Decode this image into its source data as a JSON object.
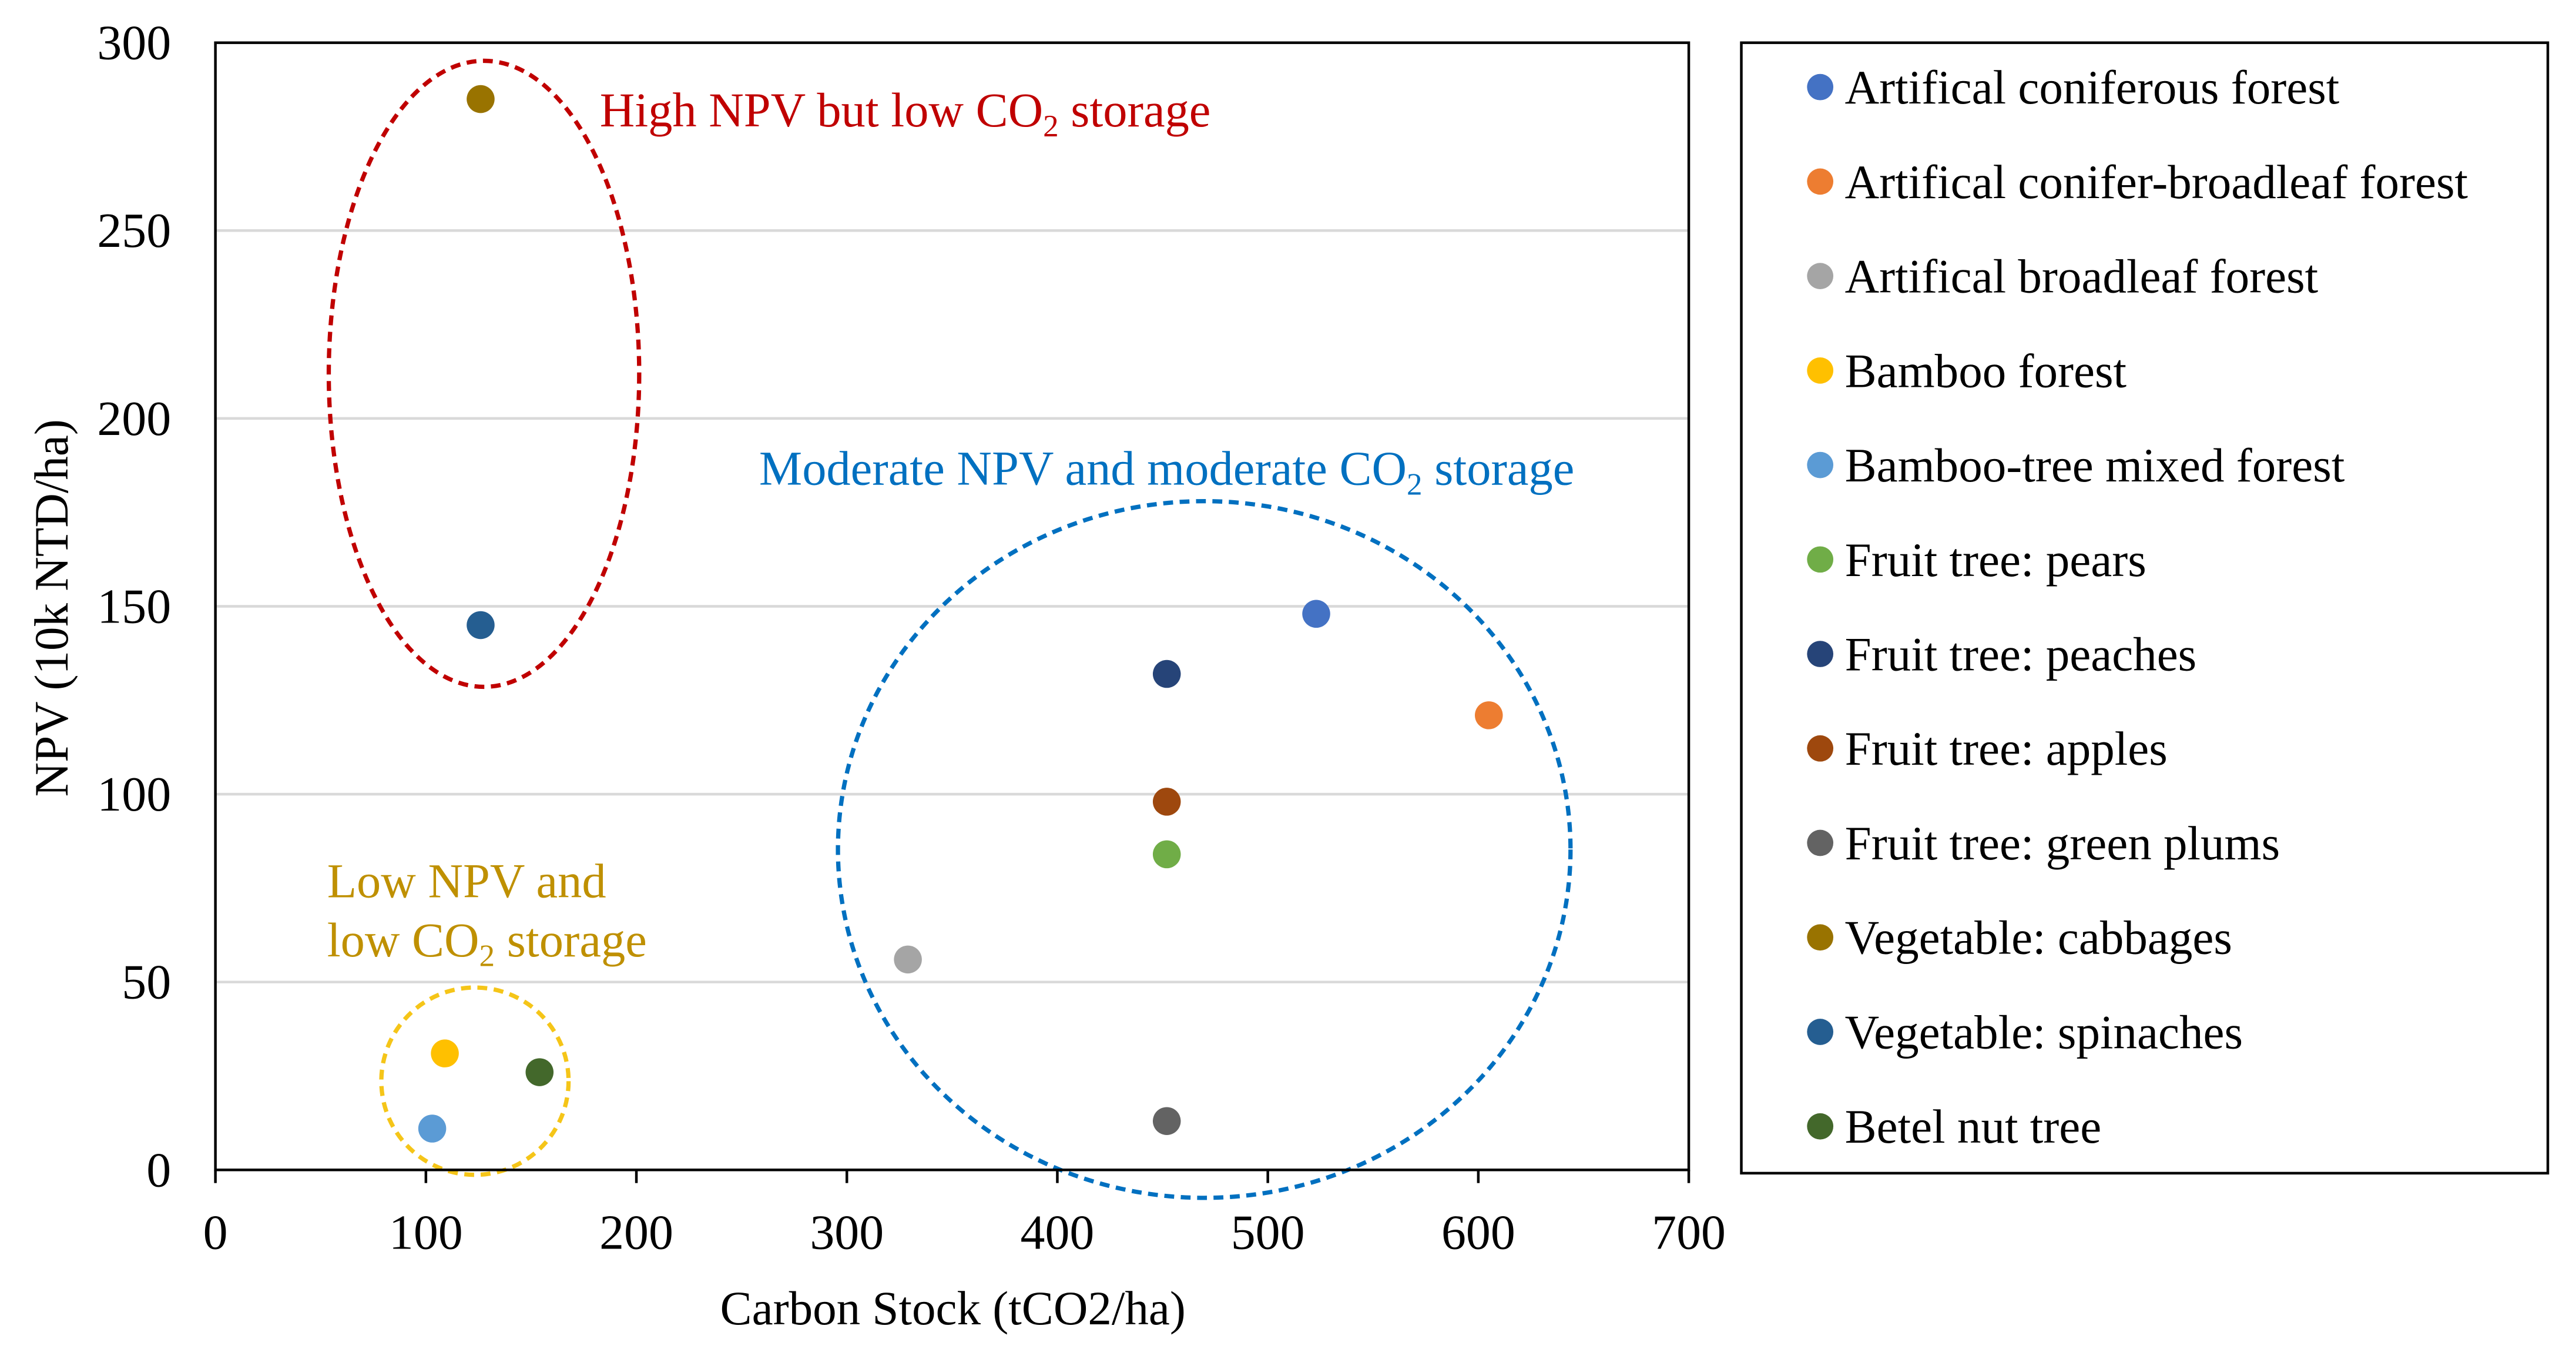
{
  "chart_data": {
    "type": "scatter",
    "title": "",
    "xlabel": "Carbon Stock (tCO2/ha)",
    "ylabel": "NPV (10k NTD/ha)",
    "xlim": [
      0,
      700
    ],
    "ylim": [
      0,
      300
    ],
    "x_ticks": [
      0,
      100,
      200,
      300,
      400,
      500,
      600,
      700
    ],
    "y_ticks": [
      0,
      50,
      100,
      150,
      200,
      250,
      300
    ],
    "grid": "horizontal",
    "legend": "right",
    "series": [
      {
        "name": "Artifical coniferous forest",
        "color": "#4472C4",
        "x": 523,
        "y": 148
      },
      {
        "name": "Artifical conifer-broadleaf forest",
        "color": "#ED7D31",
        "x": 605,
        "y": 121
      },
      {
        "name": "Artifical broadleaf forest",
        "color": "#A5A5A5",
        "x": 329,
        "y": 56
      },
      {
        "name": "Bamboo forest",
        "color": "#FFC000",
        "x": 109,
        "y": 31
      },
      {
        "name": "Bamboo-tree mixed forest",
        "color": "#5B9BD5",
        "x": 103,
        "y": 11
      },
      {
        "name": "Fruit tree: pears",
        "color": "#70AD47",
        "x": 452,
        "y": 84
      },
      {
        "name": "Fruit tree: peaches",
        "color": "#264478",
        "x": 452,
        "y": 132
      },
      {
        "name": "Fruit tree: apples",
        "color": "#9E480E",
        "x": 452,
        "y": 98
      },
      {
        "name": "Fruit tree: green plums",
        "color": "#636363",
        "x": 452,
        "y": 13
      },
      {
        "name": "Vegetable: cabbages",
        "color": "#997300",
        "x": 126,
        "y": 285
      },
      {
        "name": "Vegetable: spinaches",
        "color": "#255E91",
        "x": 126,
        "y": 145
      },
      {
        "name": "Betel nut tree",
        "color": "#43682B",
        "x": 154,
        "y": 26
      }
    ],
    "annotations": [
      {
        "text_color": "#C00000",
        "outline_color": "#C00000",
        "lines": [
          {
            "pre": "High NPV but low CO",
            "sub": "2",
            "post": " storage"
          }
        ]
      },
      {
        "text_color": "#0070C0",
        "outline_color": "#0070C0",
        "lines": [
          {
            "pre": "Moderate NPV and moderate CO",
            "sub": "2",
            "post": " storage"
          }
        ]
      },
      {
        "text_color": "#BF9000",
        "outline_color": "#F5C518",
        "lines": [
          {
            "pre": "Low NPV and"
          },
          {
            "pre": "low CO",
            "sub": "2",
            "post": " storage"
          }
        ]
      }
    ]
  }
}
